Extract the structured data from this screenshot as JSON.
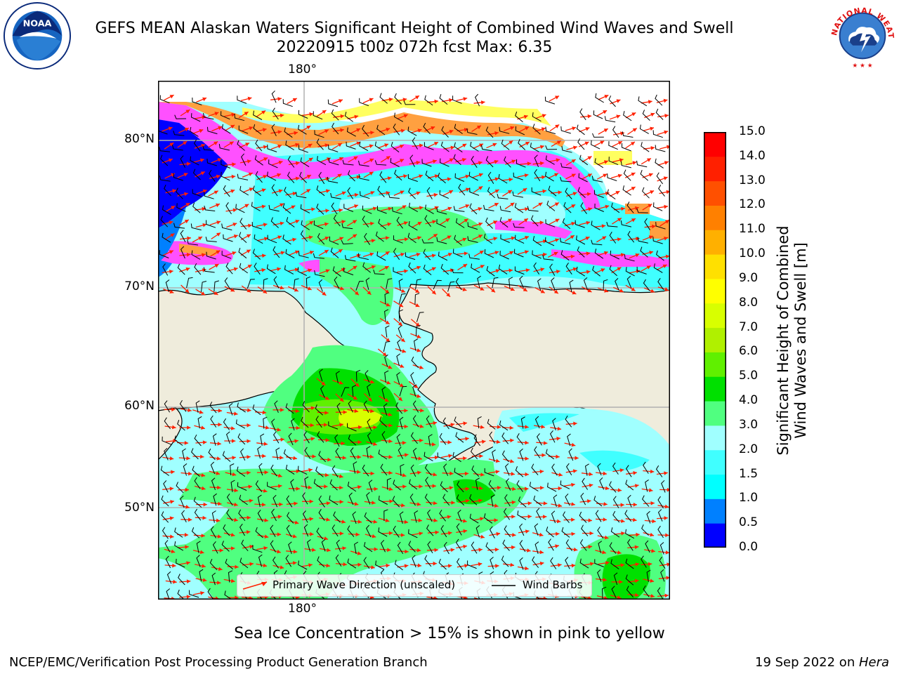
{
  "header": {
    "title_line1": "GEFS MEAN Alaskan Waters Significant Height of Combined Wind Waves and Swell",
    "title_line2": "20220915 t00z 072h fcst   Max: 6.35"
  },
  "logos": {
    "left": "noaa-logo",
    "right": "nws-logo",
    "left_text": "NOAA",
    "right_text": "NATIONAL WEATHER SERVICE"
  },
  "map": {
    "lon_top": "180°",
    "lon_bottom": "180°",
    "lat_labels": [
      "80°N",
      "70°N",
      "60°N",
      "50°N"
    ],
    "colors": {
      "land": "#efecdc",
      "ice_white": "#ffffff",
      "arrow": "#ff2000",
      "barb": "#000000"
    }
  },
  "legend": {
    "wave_label": "Primary Wave Direction (unscaled)",
    "barb_label": "Wind Barbs"
  },
  "colorbar": {
    "title_line1": "Significant Height of Combined",
    "title_line2": "Wind Waves and Swell [m]",
    "ticks": [
      "15.0",
      "14.0",
      "13.0",
      "12.0",
      "11.0",
      "10.0",
      "9.0",
      "8.0",
      "7.0",
      "6.0",
      "5.0",
      "4.0",
      "3.0",
      "2.0",
      "1.5",
      "1.0",
      "0.5",
      "0.0"
    ],
    "colors_bottom_to_top": [
      "#0000ff",
      "#0080ff",
      "#00ffff",
      "#40ffff",
      "#a0ffff",
      "#50ff80",
      "#00e000",
      "#60f000",
      "#b0f000",
      "#d8ff00",
      "#ffff00",
      "#ffe000",
      "#ffb000",
      "#ff8000",
      "#ff5000",
      "#ff2000",
      "#ff0000"
    ]
  },
  "footer": {
    "note": "Sea Ice Concentration > 15% is shown in pink to yellow",
    "left": "NCEP/EMC/Verification Post Processing Product Generation Branch",
    "right_date": "19 Sep 2022 on ",
    "right_host": "Hera"
  }
}
